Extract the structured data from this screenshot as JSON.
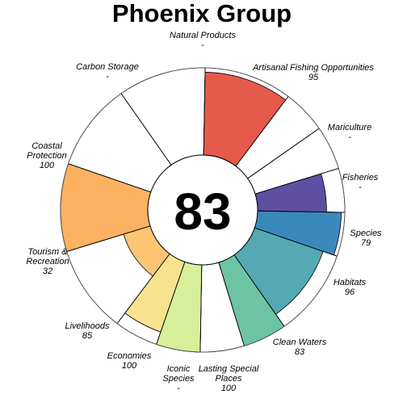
{
  "chart_data": {
    "type": "rose",
    "title": "Phoenix Group",
    "center_value": "83",
    "ylim": [
      0,
      100
    ],
    "segments": [
      {
        "label": [
          "Natural Products"
        ],
        "value_label": "-",
        "value": null,
        "color": null,
        "span": 1
      },
      {
        "label": [
          "Artisanal Fishing Opportunities"
        ],
        "value_label": "95",
        "value": 95,
        "color": "#E55A4B",
        "span": 1
      },
      {
        "label": [
          "Mariculture"
        ],
        "value_label": "-",
        "value": null,
        "color": null,
        "span": 0.5
      },
      {
        "label": [
          "Fisheries"
        ],
        "value_label": "-",
        "value": null,
        "color": null,
        "span": 0.5
      },
      {
        "label": [
          "Species"
        ],
        "value_label": "79",
        "value": 79,
        "color": "#5E4FA2",
        "span": 0.5
      },
      {
        "label": [
          "Habitats"
        ],
        "value_label": "96",
        "value": 96,
        "color": "#3A89BD",
        "span": 0.5
      },
      {
        "label": [
          "Clean Waters"
        ],
        "value_label": "83",
        "value": 83,
        "color": "#55A9B2",
        "span": 1
      },
      {
        "label": [
          "Lasting Special",
          "Places"
        ],
        "value_label": "100",
        "value": 100,
        "color": "#6CC4A4",
        "span": 0.5
      },
      {
        "label": [
          "Iconic",
          "Species"
        ],
        "value_label": "-",
        "value": null,
        "color": null,
        "span": 0.5
      },
      {
        "label": [
          "Economies"
        ],
        "value_label": "100",
        "value": 100,
        "color": "#D7EE9B",
        "span": 0.5
      },
      {
        "label": [
          "Livelihoods"
        ],
        "value_label": "85",
        "value": 85,
        "color": "#F7E38F",
        "span": 0.5
      },
      {
        "label": [
          "Tourism &",
          "Recreation"
        ],
        "value_label": "32",
        "value": 32,
        "color": "#FDC574",
        "span": 1
      },
      {
        "label": [
          "Coastal",
          "Protection"
        ],
        "value_label": "100",
        "value": 100,
        "color": "#FDB262",
        "span": 1
      },
      {
        "label": [
          "Carbon Storage"
        ],
        "value_label": "-",
        "value": null,
        "color": null,
        "span": 1
      }
    ]
  }
}
